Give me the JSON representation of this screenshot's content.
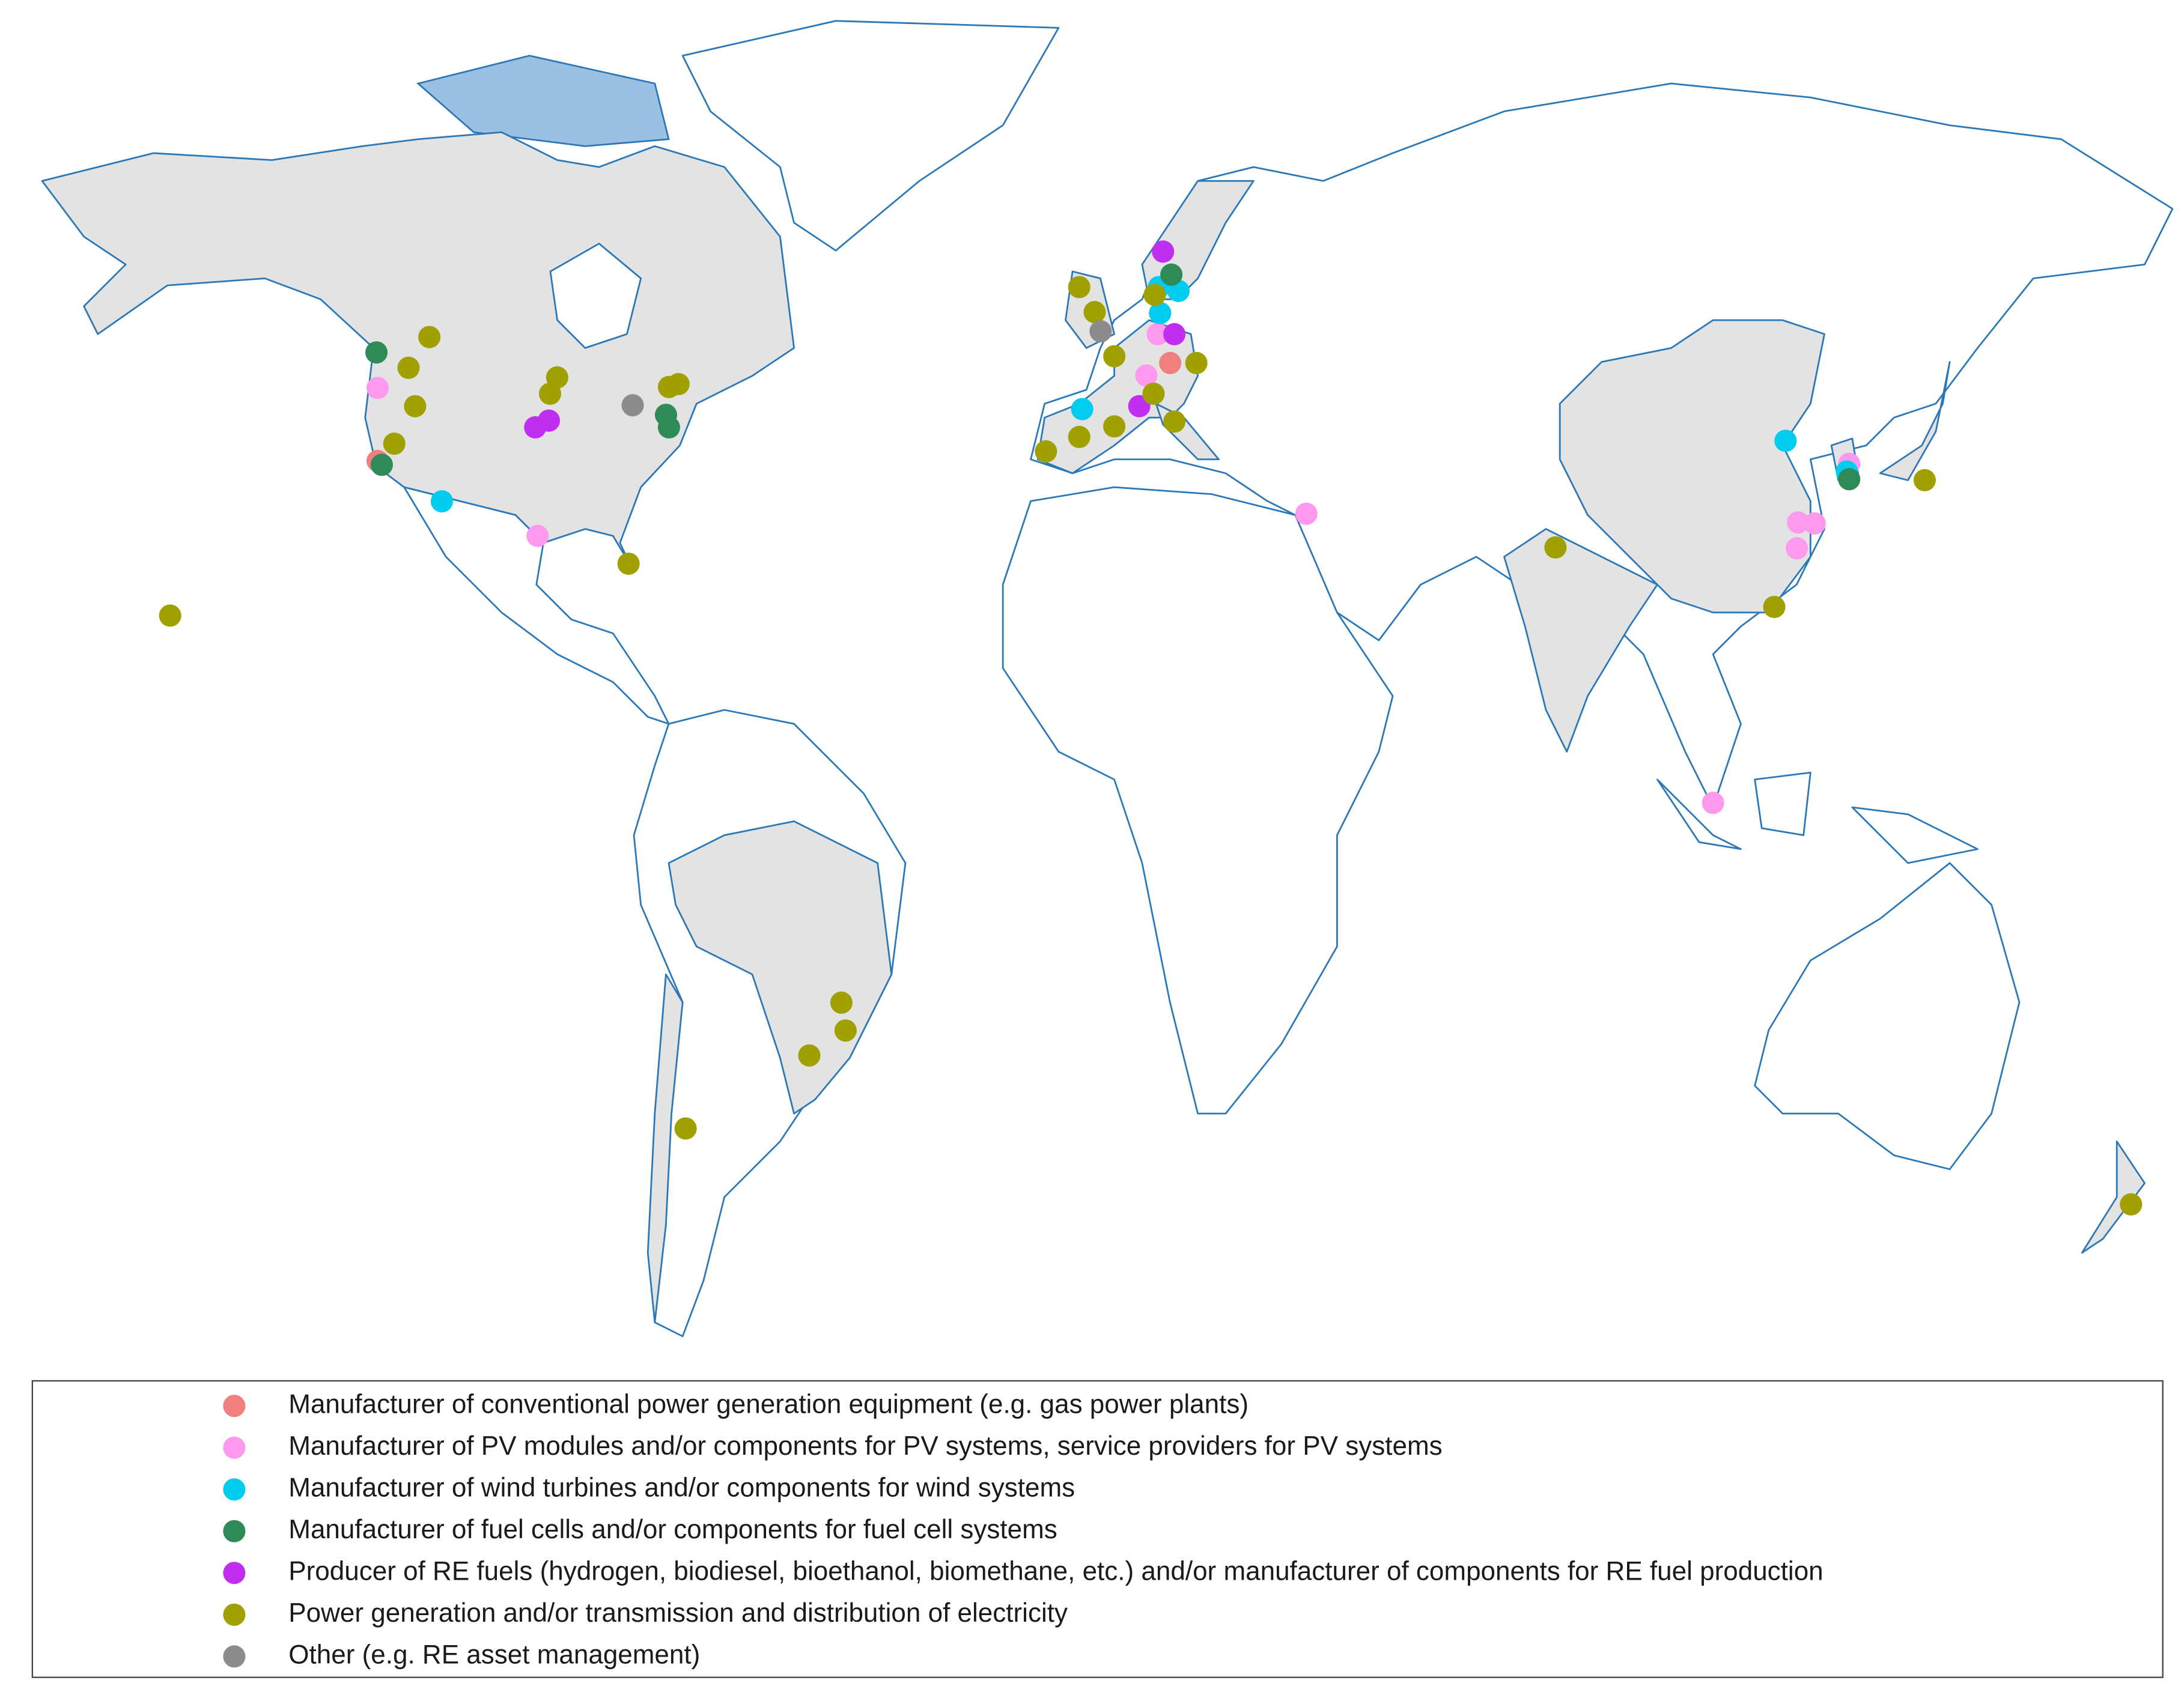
{
  "chart_data": {
    "type": "map",
    "series": [
      {
        "name": "Manufacturer of conventional power generation equipment (e.g. gas power plants)",
        "color": "#f08080",
        "lon": [
          -123.1,
          10.2
        ],
        "lat": [
          36.5,
          46.7
        ]
      },
      {
        "name": "Manufacturer of PV modules and/or components for PV systems, service providers for PV systems",
        "color": "#ff99ee",
        "lon": [
          -123.1,
          -96.2,
          8.1,
          6.2,
          33.1,
          124.4,
          115.8,
          118.6,
          115.6,
          101.5
        ],
        "lat": [
          44.1,
          28.7,
          49.7,
          45.4,
          31.0,
          36.2,
          30.1,
          30.0,
          27.4,
          0.9
        ]
      },
      {
        "name": "Manufacturer of wind turbines and/or components for wind systems",
        "color": "#00ccf0",
        "lon": [
          -112.3,
          8.3,
          11.6,
          8.5,
          -4.6,
          113.7,
          124.0
        ],
        "lat": [
          32.3,
          54.6,
          54.2,
          51.9,
          41.9,
          38.6,
          35.4
        ]
      },
      {
        "name": "Manufacturer of fuel cells and/or components for fuel cell systems",
        "color": "#2e8b57",
        "lon": [
          -123.3,
          -122.4,
          -74.6,
          -74.1,
          10.4,
          124.4
        ],
        "lat": [
          47.8,
          36.1,
          41.3,
          40.0,
          55.9,
          34.6
        ]
      },
      {
        "name": "Producer of RE fuels (hydrogen, biodiesel, bioethanol, biomethane, etc.) and/or manufacturer of components for RE fuel production",
        "color": "#c02ff0",
        "lon": [
          -94.3,
          -96.6,
          9.0,
          10.9,
          5.0
        ],
        "lat": [
          40.7,
          40.0,
          58.3,
          49.7,
          42.2
        ]
      },
      {
        "name": "Power generation and/or transmission and distribution of electricity",
        "color": "#a0a000",
        "lon": [
          -114.4,
          -117.9,
          -116.8,
          -120.3,
          -80.9,
          -158.0,
          -92.9,
          -94.1,
          -74.1,
          -72.5,
          -5.1,
          -2.5,
          0.8,
          7.6,
          14.6,
          7.4,
          10.9,
          0.8,
          -5.1,
          -10.7,
          75.0,
          137.1,
          111.8,
          -45.1,
          -44.4,
          -50.5,
          -71.3,
          171.8
        ],
        "lat": [
          49.4,
          46.2,
          42.2,
          38.3,
          25.8,
          20.4,
          45.2,
          43.5,
          44.2,
          44.5,
          54.6,
          52.0,
          47.4,
          53.8,
          46.7,
          43.5,
          40.6,
          40.1,
          39.0,
          37.5,
          27.5,
          34.5,
          21.3,
          -19.9,
          -22.8,
          -25.4,
          -33.0,
          -40.9
        ]
      },
      {
        "name": "Other (e.g. RE asset management)",
        "color": "#8c8c8c",
        "lon": [
          -80.2,
          -1.5
        ],
        "lat": [
          42.3,
          50.0
        ]
      }
    ]
  }
}
